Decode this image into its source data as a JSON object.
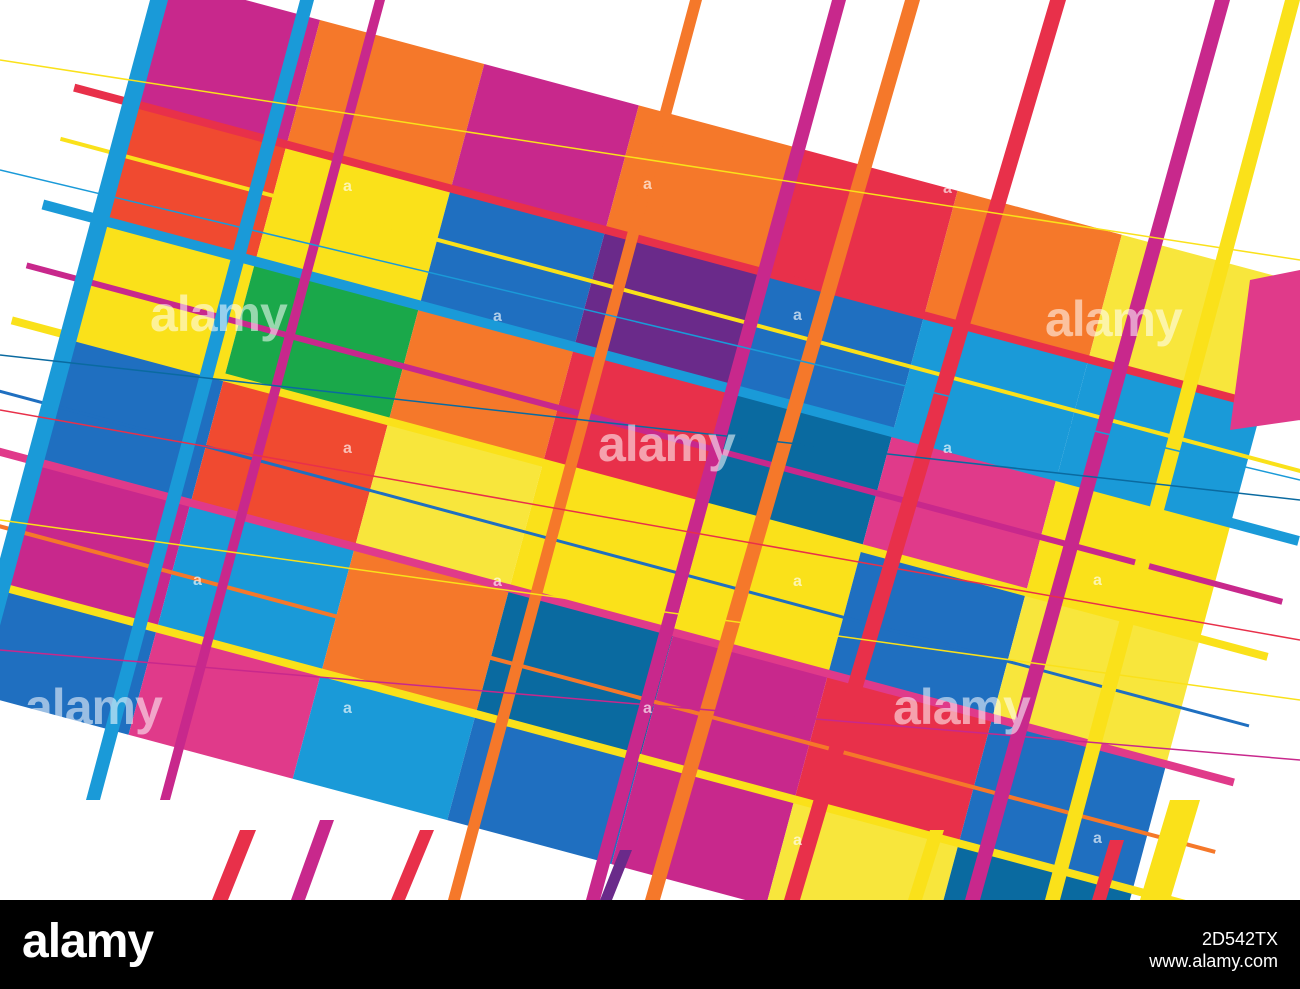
{
  "artwork": {
    "subject": "abstract colorful mosaic grid",
    "palette": [
      "#c8288c",
      "#e03a8a",
      "#f04a30",
      "#f5782a",
      "#fae11a",
      "#f8e63c",
      "#1a9ad8",
      "#1f6fc0",
      "#0a6aa0",
      "#1aa84a",
      "#6a2a8a",
      "#e8304a"
    ]
  },
  "watermark": {
    "brand_big": "alamy",
    "brand_small": "a"
  },
  "footer": {
    "logo": "alamy",
    "image_id": "2D542TX",
    "site": "www.alamy.com"
  }
}
